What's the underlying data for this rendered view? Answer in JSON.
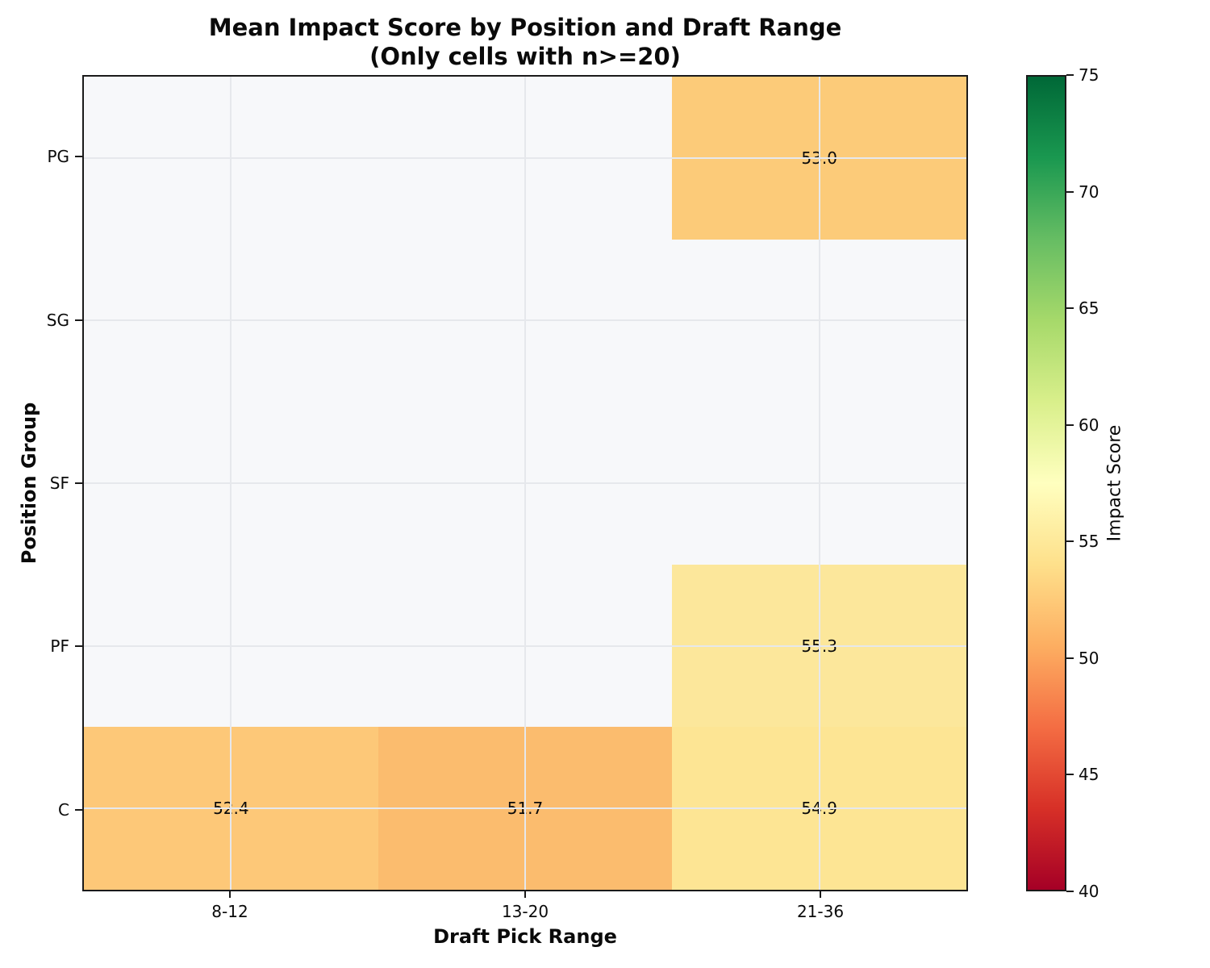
{
  "figure": {
    "background_color": "#ffffff",
    "axes_background_color": "#f7f8fa",
    "border_color": "#1a1a1a",
    "grid_color": "#e6e8ec",
    "text_color": "#0a0a0a"
  },
  "chart_data": {
    "type": "heatmap",
    "title": "Mean Impact Score by Position and Draft Range",
    "subtitle": "(Only cells with n>=20)",
    "xlabel": "Draft Pick Range",
    "ylabel": "Position Group",
    "x_categories": [
      "8-12",
      "13-20",
      "21-36"
    ],
    "y_categories": [
      "PG",
      "SG",
      "SF",
      "PF",
      "C"
    ],
    "values": [
      [
        null,
        null,
        53.0
      ],
      [
        null,
        null,
        null
      ],
      [
        null,
        null,
        null
      ],
      [
        null,
        null,
        55.3
      ],
      [
        52.4,
        51.7,
        54.9
      ]
    ],
    "value_format_decimals": 1,
    "cell_colors": [
      [
        null,
        null,
        "#fccb79"
      ],
      [
        null,
        null,
        null
      ],
      [
        null,
        null,
        null
      ],
      [
        null,
        null,
        "#fce79b"
      ],
      [
        "#fdc878",
        "#fbbc6e",
        "#fde594"
      ]
    ],
    "empty_cell_color": "#f7f8fa",
    "grid": true,
    "colorbar": {
      "label": "Impact Score",
      "min": 40,
      "max": 75,
      "ticks": [
        40,
        45,
        50,
        55,
        60,
        65,
        70,
        75
      ],
      "colormap": "RdYlGn",
      "gradient_stops": [
        "#a50026",
        "#d73027",
        "#f46d43",
        "#fdae61",
        "#fee08b",
        "#ffffbf",
        "#d9ef8b",
        "#a6d96a",
        "#66bd63",
        "#1a9850",
        "#006837"
      ],
      "position": "right"
    }
  }
}
